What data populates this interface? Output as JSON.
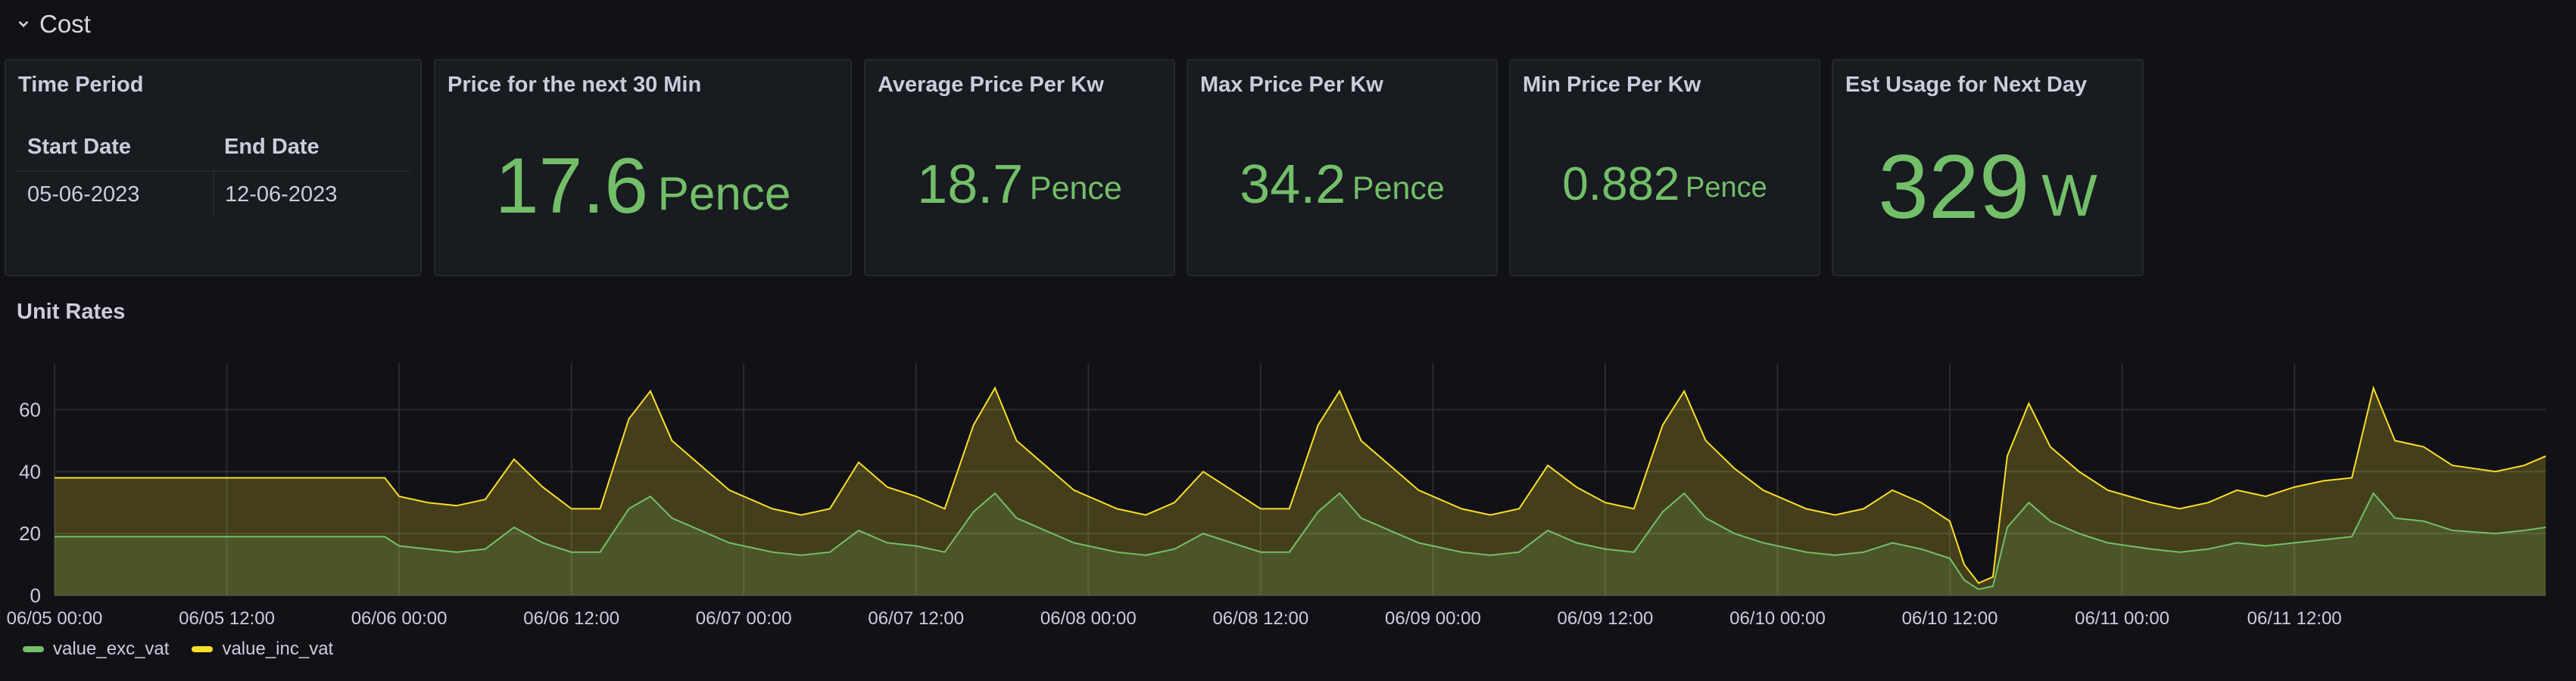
{
  "row": {
    "title": "Cost",
    "icon": "chevron-down-icon"
  },
  "panels": {
    "time_period": {
      "title": "Time Period",
      "headers": [
        "Start Date",
        "End Date"
      ],
      "row": [
        "05-06-2023",
        "12-06-2023"
      ]
    },
    "price_next": {
      "title": "Price for the next 30 Min",
      "value": "17.6",
      "unit": "Pence"
    },
    "avg_price": {
      "title": "Average Price Per Kw",
      "value": "18.7",
      "unit": "Pence"
    },
    "max_price": {
      "title": "Max Price Per Kw",
      "value": "34.2",
      "unit": "Pence"
    },
    "min_price": {
      "title": "Min Price Per Kw",
      "value": "0.882",
      "unit": "Pence"
    },
    "est_usage": {
      "title": "Est Usage for Next Day",
      "value": "329",
      "unit": "W"
    }
  },
  "colors": {
    "background": "#111217",
    "panel": "#181b1f",
    "stat_green": "#73bf69",
    "series_exc": "#73bf69",
    "series_inc": "#fade2a"
  },
  "chart_data": {
    "type": "area",
    "title": "Unit Rates",
    "xlabel": "",
    "ylabel": "",
    "ylim": [
      0,
      75
    ],
    "yticks": [
      0,
      20,
      40,
      60
    ],
    "x_range": [
      "06/05 00:00",
      "06/12 05:30"
    ],
    "xticks": [
      "06/05 00:00",
      "06/05 12:00",
      "06/06 00:00",
      "06/06 12:00",
      "06/07 00:00",
      "06/07 12:00",
      "06/08 00:00",
      "06/08 12:00",
      "06/09 00:00",
      "06/09 12:00",
      "06/10 00:00",
      "06/10 12:00",
      "06/11 00:00",
      "06/11 12:00"
    ],
    "grid": true,
    "legend_position": "bottom-left",
    "series": [
      {
        "name": "value_exc_vat",
        "color": "#73bf69",
        "x": [
          "06/05 00:00",
          "06/05 23:00",
          "06/06 00:00",
          "06/06 02:00",
          "06/06 04:00",
          "06/06 06:00",
          "06/06 08:00",
          "06/06 10:00",
          "06/06 12:00",
          "06/06 14:00",
          "06/06 16:00",
          "06/06 17:30",
          "06/06 19:00",
          "06/06 21:00",
          "06/06 23:00",
          "06/07 02:00",
          "06/07 04:00",
          "06/07 06:00",
          "06/07 08:00",
          "06/07 10:00",
          "06/07 12:00",
          "06/07 14:00",
          "06/07 16:00",
          "06/07 17:30",
          "06/07 19:00",
          "06/07 21:00",
          "06/07 23:00",
          "06/08 02:00",
          "06/08 04:00",
          "06/08 06:00",
          "06/08 08:00",
          "06/08 10:00",
          "06/08 12:00",
          "06/08 14:00",
          "06/08 16:00",
          "06/08 17:30",
          "06/08 19:00",
          "06/08 21:00",
          "06/08 23:00",
          "06/09 02:00",
          "06/09 04:00",
          "06/09 06:00",
          "06/09 08:00",
          "06/09 10:00",
          "06/09 12:00",
          "06/09 14:00",
          "06/09 16:00",
          "06/09 17:30",
          "06/09 19:00",
          "06/09 21:00",
          "06/09 23:00",
          "06/10 02:00",
          "06/10 04:00",
          "06/10 06:00",
          "06/10 08:00",
          "06/10 10:00",
          "06/10 12:00",
          "06/10 13:00",
          "06/10 14:00",
          "06/10 15:00",
          "06/10 16:00",
          "06/10 17:30",
          "06/10 19:00",
          "06/10 21:00",
          "06/10 23:00",
          "06/11 02:00",
          "06/11 04:00",
          "06/11 06:00",
          "06/11 08:00",
          "06/11 10:00",
          "06/11 12:00",
          "06/11 14:00",
          "06/11 16:00",
          "06/11 17:30",
          "06/11 19:00",
          "06/11 21:00",
          "06/11 23:00",
          "06/12 02:00",
          "06/12 04:00",
          "06/12 05:30"
        ],
        "values": [
          19,
          19,
          16,
          15,
          14,
          15,
          22,
          17,
          14,
          14,
          28,
          32,
          25,
          21,
          17,
          14,
          13,
          14,
          21,
          17,
          16,
          14,
          27,
          33,
          25,
          21,
          17,
          14,
          13,
          15,
          20,
          17,
          14,
          14,
          27,
          33,
          25,
          21,
          17,
          14,
          13,
          14,
          21,
          17,
          15,
          14,
          27,
          33,
          25,
          20,
          17,
          14,
          13,
          14,
          17,
          15,
          12,
          5,
          2,
          3,
          22,
          30,
          24,
          20,
          17,
          15,
          14,
          15,
          17,
          16,
          17,
          18,
          19,
          33,
          25,
          24,
          21,
          20,
          21,
          22
        ]
      },
      {
        "name": "value_inc_vat",
        "color": "#fade2a",
        "x": [
          "06/05 00:00",
          "06/05 23:00",
          "06/06 00:00",
          "06/06 02:00",
          "06/06 04:00",
          "06/06 06:00",
          "06/06 08:00",
          "06/06 10:00",
          "06/06 12:00",
          "06/06 14:00",
          "06/06 16:00",
          "06/06 17:30",
          "06/06 19:00",
          "06/06 21:00",
          "06/06 23:00",
          "06/07 02:00",
          "06/07 04:00",
          "06/07 06:00",
          "06/07 08:00",
          "06/07 10:00",
          "06/07 12:00",
          "06/07 14:00",
          "06/07 16:00",
          "06/07 17:30",
          "06/07 19:00",
          "06/07 21:00",
          "06/07 23:00",
          "06/08 02:00",
          "06/08 04:00",
          "06/08 06:00",
          "06/08 08:00",
          "06/08 10:00",
          "06/08 12:00",
          "06/08 14:00",
          "06/08 16:00",
          "06/08 17:30",
          "06/08 19:00",
          "06/08 21:00",
          "06/08 23:00",
          "06/09 02:00",
          "06/09 04:00",
          "06/09 06:00",
          "06/09 08:00",
          "06/09 10:00",
          "06/09 12:00",
          "06/09 14:00",
          "06/09 16:00",
          "06/09 17:30",
          "06/09 19:00",
          "06/09 21:00",
          "06/09 23:00",
          "06/10 02:00",
          "06/10 04:00",
          "06/10 06:00",
          "06/10 08:00",
          "06/10 10:00",
          "06/10 12:00",
          "06/10 13:00",
          "06/10 14:00",
          "06/10 15:00",
          "06/10 16:00",
          "06/10 17:30",
          "06/10 19:00",
          "06/10 21:00",
          "06/10 23:00",
          "06/11 02:00",
          "06/11 04:00",
          "06/11 06:00",
          "06/11 08:00",
          "06/11 10:00",
          "06/11 12:00",
          "06/11 14:00",
          "06/11 16:00",
          "06/11 17:30",
          "06/11 19:00",
          "06/11 21:00",
          "06/11 23:00",
          "06/12 02:00",
          "06/12 04:00",
          "06/12 05:30"
        ],
        "values": [
          38,
          38,
          32,
          30,
          29,
          31,
          44,
          35,
          28,
          28,
          57,
          66,
          50,
          42,
          34,
          28,
          26,
          28,
          43,
          35,
          32,
          28,
          55,
          67,
          50,
          42,
          34,
          28,
          26,
          30,
          40,
          34,
          28,
          28,
          55,
          66,
          50,
          42,
          34,
          28,
          26,
          28,
          42,
          35,
          30,
          28,
          55,
          66,
          50,
          41,
          34,
          28,
          26,
          28,
          34,
          30,
          24,
          10,
          4,
          6,
          45,
          62,
          48,
          40,
          34,
          30,
          28,
          30,
          34,
          32,
          35,
          37,
          38,
          67,
          50,
          48,
          42,
          40,
          42,
          45
        ]
      }
    ]
  },
  "legend": [
    {
      "label": "value_exc_vat",
      "color": "#73bf69"
    },
    {
      "label": "value_inc_vat",
      "color": "#fade2a"
    }
  ]
}
